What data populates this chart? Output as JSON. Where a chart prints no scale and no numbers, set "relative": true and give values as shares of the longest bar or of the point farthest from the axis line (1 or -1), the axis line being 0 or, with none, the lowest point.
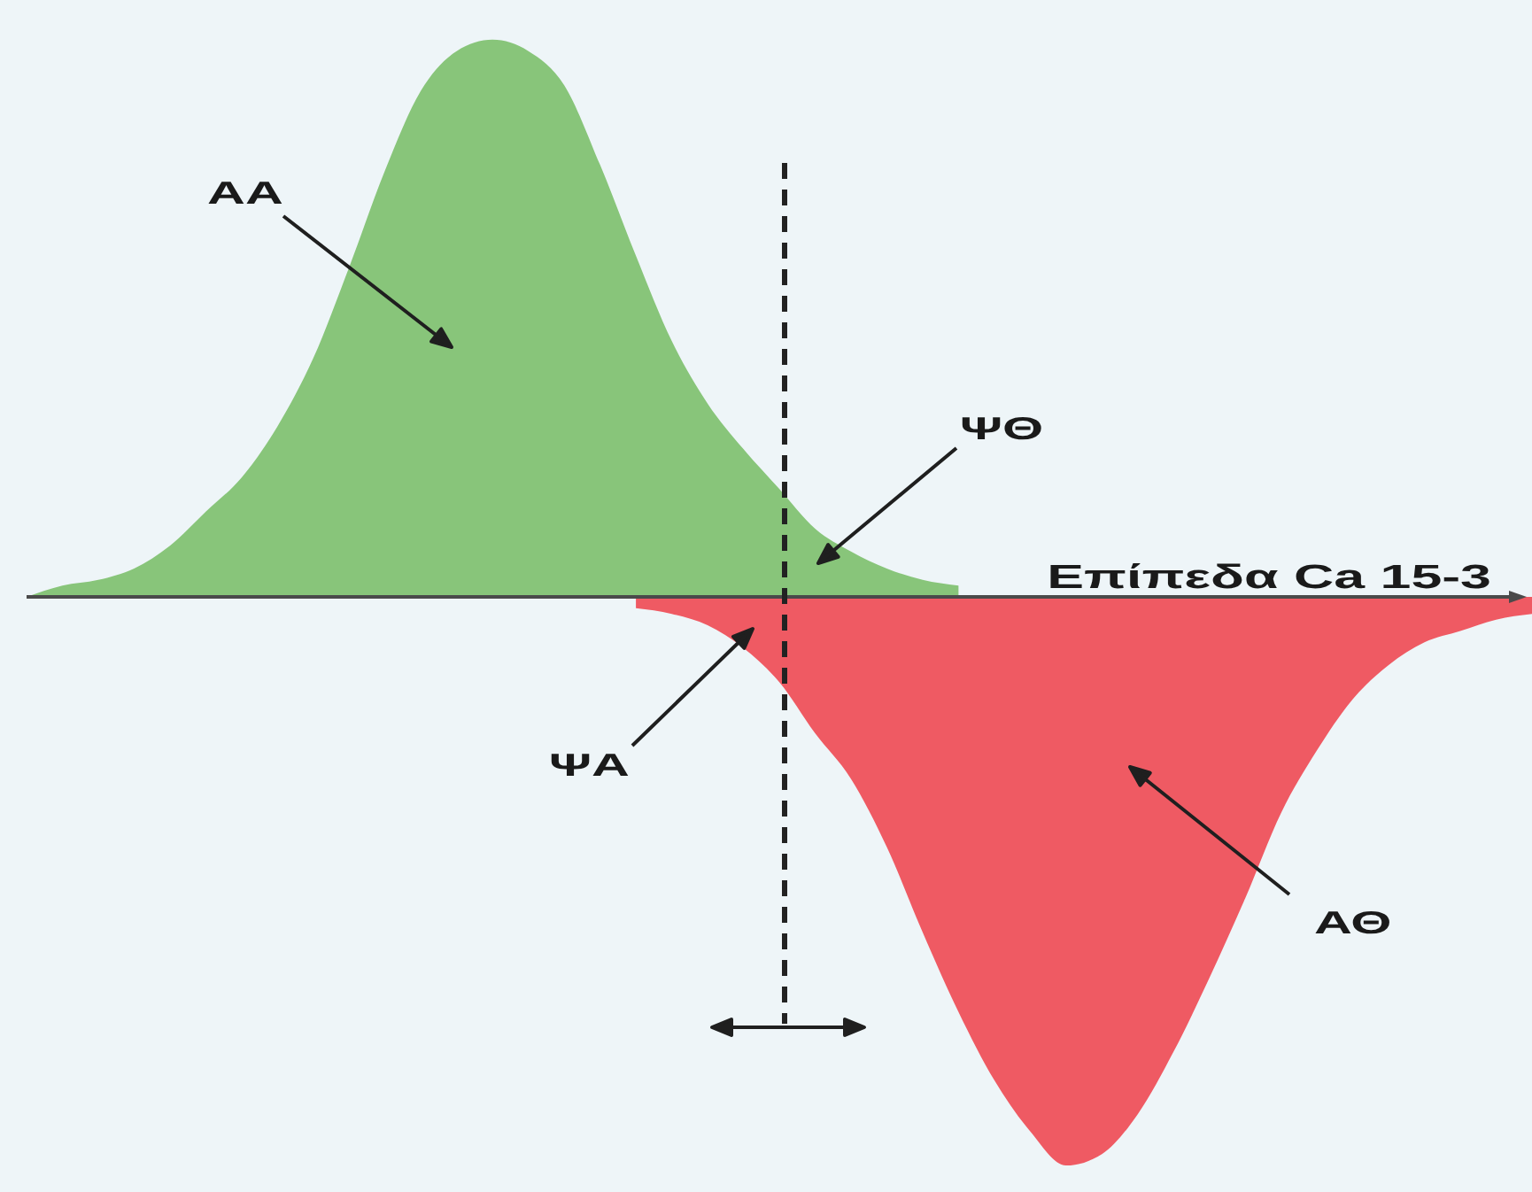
{
  "chart_data": {
    "type": "area",
    "relative": true,
    "xlabel": "Επίπεδα Ca 15-3",
    "categories": [
      null,
      null,
      null,
      null,
      null,
      null,
      null,
      null,
      null,
      null,
      null,
      null,
      null,
      null,
      null,
      null,
      null,
      null,
      null,
      null,
      null,
      null,
      null,
      null,
      null,
      null,
      null,
      null,
      null,
      null,
      null,
      null,
      null,
      null,
      null,
      null,
      null,
      null,
      null,
      null,
      null,
      null,
      null
    ],
    "series": [
      {
        "color": "#88c57a",
        "values": [
          0,
          0.02,
          0.03,
          0.05,
          0.09,
          0.15,
          0.21,
          0.3,
          0.42,
          0.58,
          0.75,
          0.89,
          0.96,
          0.98,
          0.96,
          0.9,
          0.76,
          0.6,
          0.45,
          0.34,
          0.26,
          0.19,
          0.12,
          0.08,
          0.05,
          0.03,
          0.02,
          null,
          null,
          null,
          null,
          null,
          null,
          null,
          null,
          null,
          null,
          null,
          null,
          null,
          null,
          null,
          null
        ]
      },
      {
        "color": "#ef5a63",
        "values": [
          null,
          null,
          null,
          null,
          null,
          null,
          null,
          null,
          null,
          null,
          null,
          null,
          null,
          null,
          null,
          null,
          null,
          -0.02,
          -0.03,
          -0.05,
          -0.09,
          -0.15,
          -0.24,
          -0.32,
          -0.44,
          -0.59,
          -0.73,
          -0.85,
          -0.94,
          -1,
          -0.98,
          -0.91,
          -0.8,
          -0.67,
          -0.53,
          -0.38,
          -0.27,
          -0.18,
          -0.12,
          -0.08,
          -0.06,
          -0.04,
          -0.03
        ]
      }
    ],
    "annotations": [
      "AA",
      "ΨΘ",
      "ΨΑ",
      "ΑΘ"
    ]
  }
}
